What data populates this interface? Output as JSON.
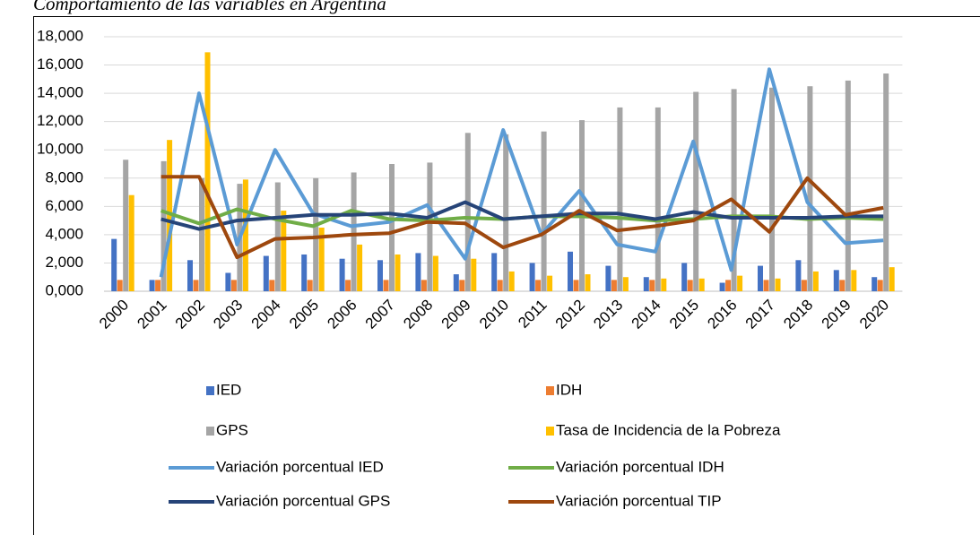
{
  "chart_data": {
    "type": "bar",
    "title": "Comportamiento de las variables en Argentina",
    "categories": [
      "2000",
      "2001",
      "2002",
      "2003",
      "2004",
      "2005",
      "2006",
      "2007",
      "2008",
      "2009",
      "2010",
      "2011",
      "2012",
      "2013",
      "2014",
      "2015",
      "2016",
      "2017",
      "2018",
      "2019",
      "2020"
    ],
    "ylim": [
      0,
      18
    ],
    "yticks": [
      {
        "value": 0,
        "label": "0,000"
      },
      {
        "value": 2,
        "label": "2,000"
      },
      {
        "value": 4,
        "label": "4,000"
      },
      {
        "value": 6,
        "label": "6,000"
      },
      {
        "value": 8,
        "label": "8,000"
      },
      {
        "value": 10,
        "label": "10,000"
      },
      {
        "value": 12,
        "label": "12,000"
      },
      {
        "value": 14,
        "label": "14,000"
      },
      {
        "value": 16,
        "label": "16,000"
      },
      {
        "value": 18,
        "label": "18,000"
      }
    ],
    "grid": true,
    "series": [
      {
        "name": "IED",
        "type": "bar",
        "color": "#4472c4",
        "values": [
          3.7,
          0.8,
          2.2,
          1.3,
          2.5,
          2.6,
          2.3,
          2.2,
          2.7,
          1.2,
          2.7,
          2.0,
          2.8,
          1.8,
          1.0,
          2.0,
          0.6,
          1.8,
          2.2,
          1.5,
          1.0
        ]
      },
      {
        "name": "IDH",
        "type": "bar",
        "color": "#ed7d31",
        "values": [
          0.8,
          0.8,
          0.8,
          0.8,
          0.8,
          0.8,
          0.8,
          0.8,
          0.8,
          0.8,
          0.8,
          0.8,
          0.8,
          0.8,
          0.8,
          0.8,
          0.8,
          0.8,
          0.8,
          0.8,
          0.8
        ]
      },
      {
        "name": "GPS",
        "type": "bar",
        "color": "#a5a5a5",
        "values": [
          9.3,
          9.2,
          8.0,
          7.6,
          7.7,
          8.0,
          8.4,
          9.0,
          9.1,
          11.2,
          11.1,
          11.3,
          12.1,
          13.0,
          13.0,
          14.1,
          14.3,
          14.4,
          14.5,
          14.9,
          15.4
        ]
      },
      {
        "name": "Tasa de Incidencia de la Pobreza",
        "type": "bar",
        "color": "#ffc000",
        "values": [
          6.8,
          10.7,
          16.9,
          7.9,
          5.7,
          4.5,
          3.3,
          2.6,
          2.5,
          2.3,
          1.4,
          1.1,
          1.2,
          1.0,
          0.9,
          0.9,
          1.1,
          0.9,
          1.4,
          1.5,
          1.7
        ]
      },
      {
        "name": "Variación porcentual IED",
        "type": "line",
        "color": "#5b9bd5",
        "values": [
          null,
          1.0,
          14.0,
          3.3,
          10.0,
          5.5,
          4.6,
          4.9,
          6.1,
          2.3,
          11.4,
          4.0,
          7.1,
          3.3,
          2.8,
          10.6,
          1.5,
          15.7,
          6.3,
          3.4,
          3.6
        ]
      },
      {
        "name": "Variación porcentual IDH",
        "type": "line",
        "color": "#70ad47",
        "values": [
          null,
          5.7,
          4.8,
          5.8,
          5.1,
          4.6,
          5.7,
          5.1,
          5.0,
          5.2,
          5.1,
          5.3,
          5.3,
          5.2,
          5.0,
          5.1,
          5.3,
          5.3,
          5.1,
          5.2,
          5.1
        ]
      },
      {
        "name": "Variación porcentual GPS",
        "type": "line",
        "color": "#264478",
        "values": [
          null,
          5.1,
          4.4,
          5.0,
          5.2,
          5.4,
          5.4,
          5.5,
          5.2,
          6.3,
          5.1,
          5.3,
          5.5,
          5.5,
          5.1,
          5.6,
          5.2,
          5.2,
          5.2,
          5.3,
          5.3
        ]
      },
      {
        "name": "Variación porcentual TIP",
        "type": "line",
        "color": "#9e480e",
        "values": [
          null,
          8.1,
          8.1,
          2.4,
          3.7,
          3.8,
          4.0,
          4.1,
          4.9,
          4.8,
          3.1,
          4.0,
          5.7,
          4.3,
          4.6,
          5.0,
          6.5,
          4.2,
          8.0,
          5.4,
          5.9
        ]
      }
    ]
  }
}
